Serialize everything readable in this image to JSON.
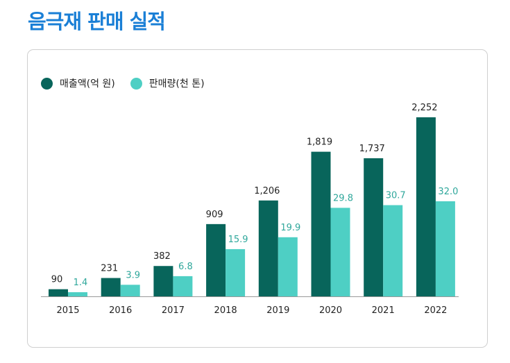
{
  "page": {
    "title": "음극재 판매 실적"
  },
  "colors": {
    "title": "#1a7fd6",
    "sales": "#08655b",
    "volume": "#4ecfc4",
    "volume_label": "#2fa79b",
    "axis": "#999999",
    "text": "#222222"
  },
  "legend": {
    "sales_label": "매출액(억 원)",
    "volume_label": "판매량(천 톤)"
  },
  "chart_data": {
    "type": "bar",
    "categories": [
      "2015",
      "2016",
      "2017",
      "2018",
      "2019",
      "2020",
      "2021",
      "2022"
    ],
    "series": [
      {
        "name": "매출액(억 원)",
        "values": [
          90,
          231,
          382,
          909,
          1206,
          1819,
          1737,
          2252
        ],
        "labels": [
          "90",
          "231",
          "382",
          "909",
          "1,206",
          "1,819",
          "1,737",
          "2,252"
        ]
      },
      {
        "name": "판매량(천 톤)",
        "values": [
          1.4,
          3.9,
          6.8,
          15.9,
          19.9,
          29.8,
          30.7,
          32.0
        ],
        "labels": [
          "1.4",
          "3.9",
          "6.8",
          "15.9",
          "19.9",
          "29.8",
          "30.7",
          "32.0"
        ]
      }
    ],
    "legend_position": "top-left",
    "grid": false
  }
}
